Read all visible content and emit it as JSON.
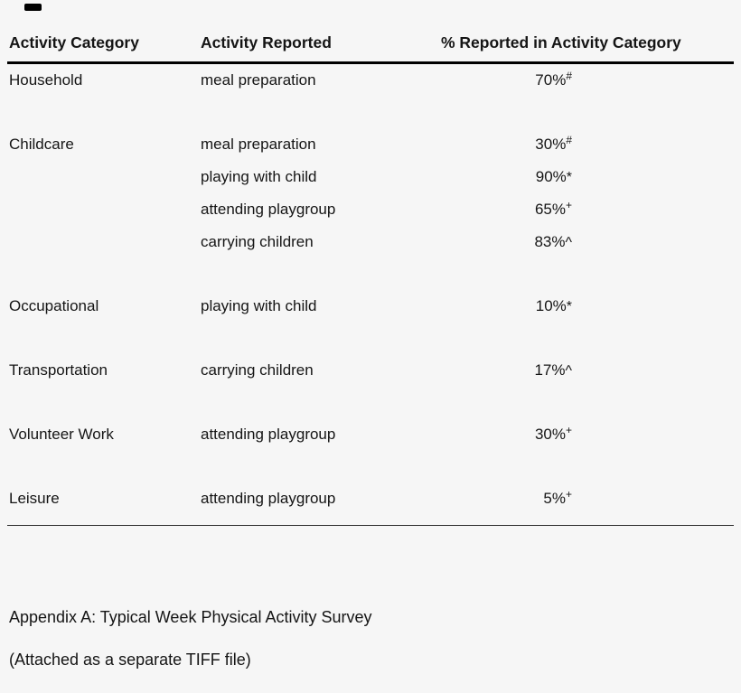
{
  "table": {
    "headers": [
      "Activity Category",
      "Activity Reported",
      "% Reported in Activity Category"
    ],
    "rows": [
      {
        "category": "Household",
        "activity": "meal preparation",
        "percent": "70%",
        "marker": "#"
      },
      {
        "category": "Childcare",
        "activity": "meal preparation",
        "percent": "30%",
        "marker": "#"
      },
      {
        "category": "",
        "activity": "playing with child",
        "percent": "90%",
        "marker": "*"
      },
      {
        "category": "",
        "activity": "attending playgroup",
        "percent": "65%",
        "marker": "+"
      },
      {
        "category": "",
        "activity": "carrying children",
        "percent": "83%",
        "marker": "^"
      },
      {
        "category": "Occupational",
        "activity": "playing with child",
        "percent": "10%",
        "marker": "*"
      },
      {
        "category": "Transportation",
        "activity": "carrying children",
        "percent": "17%",
        "marker": "^"
      },
      {
        "category": "Volunteer Work",
        "activity": "attending playgroup",
        "percent": "30%",
        "marker": "+"
      },
      {
        "category": "Leisure",
        "activity": "attending playgroup",
        "percent": "5%",
        "marker": "+"
      }
    ]
  },
  "footer": {
    "appendix_line": "Appendix A: Typical Week Physical Activity Survey",
    "attachment_line": "(Attached as a separate TIFF file)"
  }
}
